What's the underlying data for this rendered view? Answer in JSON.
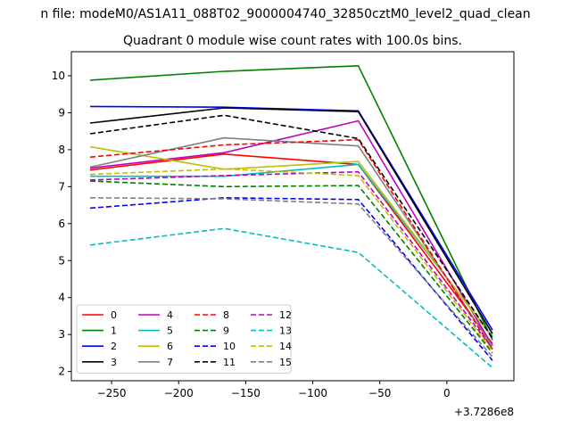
{
  "chart_data": {
    "type": "line",
    "suptitle": "n file: modeM0/AS1A11_088T02_9000004740_32850cztM0_level2_quad_clean",
    "title": "Quadrant 0 module wise count rates with 100.0s bins.",
    "xlabel": "",
    "ylabel": "",
    "offset_label": "+3.7286e8",
    "xlim": [
      -280,
      50
    ],
    "ylim": [
      1.75,
      10.65
    ],
    "xticks": [
      -250,
      -200,
      -150,
      -100,
      -50,
      0
    ],
    "yticks": [
      2,
      3,
      4,
      5,
      6,
      7,
      8,
      9,
      10
    ],
    "x": [
      -266,
      -166,
      -66,
      34
    ],
    "legend_position": "lower-left",
    "legend_columns": 4,
    "series": [
      {
        "name": "0",
        "color": "#ff0000",
        "dash": "solid",
        "values": [
          7.45,
          7.88,
          7.6,
          2.75
        ]
      },
      {
        "name": "1",
        "color": "#008000",
        "dash": "solid",
        "values": [
          9.88,
          10.12,
          10.27,
          2.85
        ]
      },
      {
        "name": "2",
        "color": "#0000ff",
        "dash": "solid",
        "values": [
          9.17,
          9.15,
          9.05,
          3.12
        ]
      },
      {
        "name": "3",
        "color": "#000000",
        "dash": "solid",
        "values": [
          8.72,
          9.13,
          9.03,
          3.02
        ]
      },
      {
        "name": "4",
        "color": "#bf00bf",
        "dash": "solid",
        "values": [
          7.5,
          7.92,
          8.78,
          2.7
        ]
      },
      {
        "name": "5",
        "color": "#00bfbf",
        "dash": "solid",
        "values": [
          7.28,
          7.28,
          7.6,
          2.95
        ]
      },
      {
        "name": "6",
        "color": "#bfbf00",
        "dash": "solid",
        "values": [
          8.08,
          7.47,
          7.68,
          2.92
        ]
      },
      {
        "name": "7",
        "color": "#808080",
        "dash": "solid",
        "values": [
          7.53,
          8.32,
          8.1,
          2.68
        ]
      },
      {
        "name": "8",
        "color": "#ff0000",
        "dash": "dashed",
        "values": [
          7.8,
          8.13,
          8.27,
          2.6
        ]
      },
      {
        "name": "9",
        "color": "#008000",
        "dash": "dashed",
        "values": [
          7.15,
          7.0,
          7.03,
          2.5
        ]
      },
      {
        "name": "10",
        "color": "#0000ff",
        "dash": "dashed",
        "values": [
          6.42,
          6.7,
          6.65,
          2.3
        ]
      },
      {
        "name": "11",
        "color": "#000000",
        "dash": "dashed",
        "values": [
          8.43,
          8.93,
          8.3,
          2.9
        ]
      },
      {
        "name": "12",
        "color": "#bf00bf",
        "dash": "dashed",
        "values": [
          7.18,
          7.3,
          7.4,
          2.62
        ]
      },
      {
        "name": "13",
        "color": "#00bfbf",
        "dash": "dashed",
        "values": [
          5.42,
          5.87,
          5.22,
          2.1
        ]
      },
      {
        "name": "14",
        "color": "#bfbf00",
        "dash": "dashed",
        "values": [
          7.33,
          7.48,
          7.3,
          2.55
        ]
      },
      {
        "name": "15",
        "color": "#808080",
        "dash": "dashed",
        "values": [
          6.7,
          6.67,
          6.53,
          2.4
        ]
      }
    ]
  }
}
